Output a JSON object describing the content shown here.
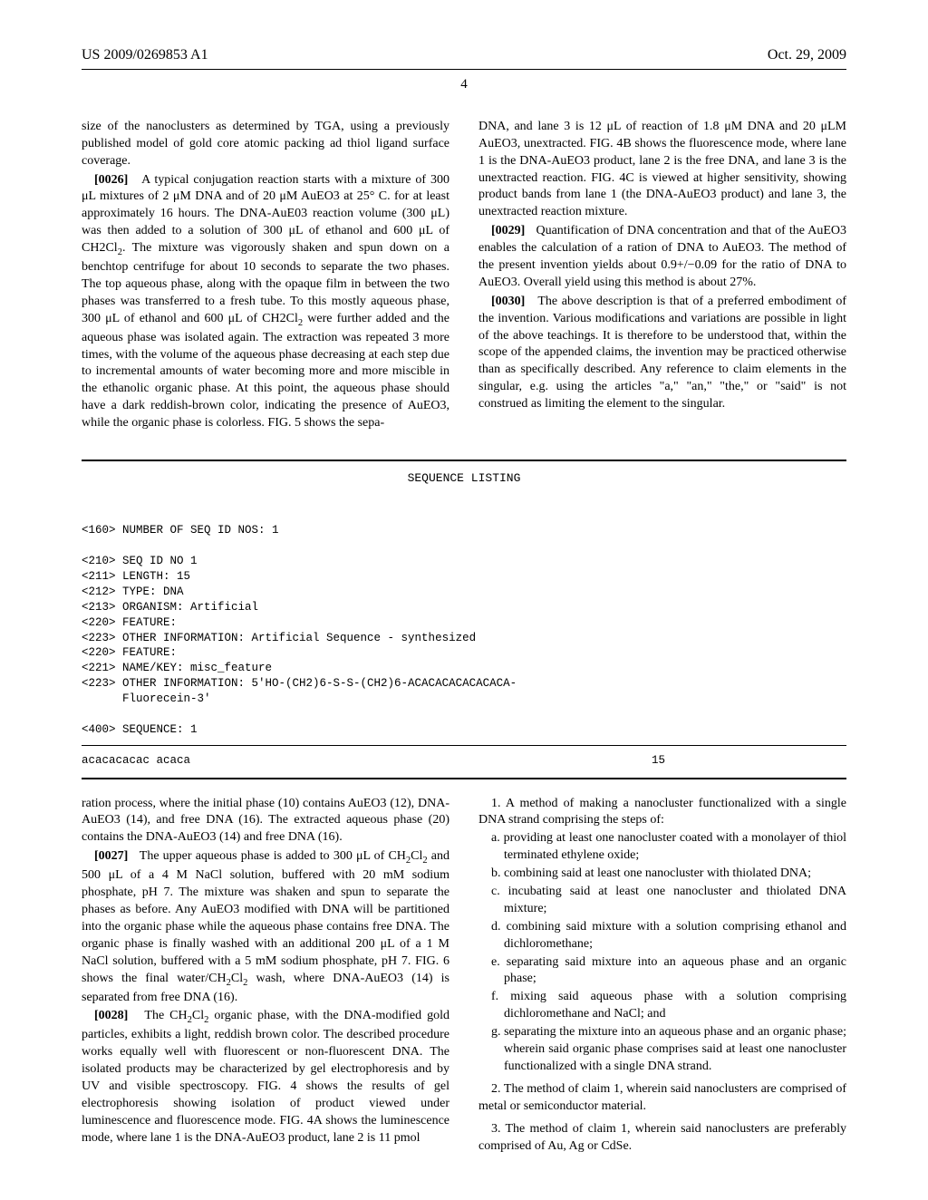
{
  "header": {
    "docket": "US 2009/0269853 A1",
    "date": "Oct. 29, 2009"
  },
  "page_number": "4",
  "left_col": {
    "p1": "size of the nanoclusters as determined by TGA, using a previously published model of gold core atomic packing ad thiol ligand surface coverage.",
    "p2_label": "[0026]",
    "p2_a": "A typical conjugation reaction starts with a mixture of 300 μL mixtures of 2 μM DNA and of 20 μM AuEO3 at 25° C. for at least approximately 16 hours. The DNA-AuE03 reaction volume (300 μL) was then added to a solution of 300 μL of ethanol and 600 μL of CH",
    "p2_b": ". The mixture was vigorously shaken and spun down on a benchtop centrifuge for about 10 seconds to separate the two phases. The top aqueous phase, along with the opaque film in between the two phases was transferred to a fresh tube. To this mostly aqueous phase, 300 μL of ethanol and 600 μL of CH",
    "p2_c": " were further added and the aqueous phase was isolated again. The extraction was repeated 3 more times, with the volume of the aqueous phase decreasing at each step due to incremental amounts of water becoming more and more miscible in the ethanolic organic phase. At this point, the aqueous phase should have a dark reddish-brown color, indicating the presence of AuEO3, while the organic phase is colorless. FIG. 5 shows the sepa-"
  },
  "right_col": {
    "p1": "DNA, and lane 3 is 12 μL of reaction of 1.8 μM DNA and 20 μLM AuEO3, unextracted. FIG. 4B shows the fluorescence mode, where lane 1 is the DNA-AuEO3 product, lane 2 is the free DNA, and lane 3 is the unextracted reaction. FIG. 4C is viewed at higher sensitivity, showing product bands from lane 1 (the DNA-AuEO3 product) and lane 3, the unextracted reaction mixture.",
    "p2_label": "[0029]",
    "p2": "Quantification of DNA concentration and that of the AuEO3 enables the calculation of a ration of DNA to AuEO3. The method of the present invention yields about 0.9+/−0.09 for the ratio of DNA to AuEO3. Overall yield using this method is about 27%.",
    "p3_label": "[0030]",
    "p3": "The above description is that of a preferred embodiment of the invention. Various modifications and variations are possible in light of the above teachings. It is therefore to be understood that, within the scope of the appended claims, the invention may be practiced otherwise than as specifically described. Any reference to claim elements in the singular, e.g. using the articles \"a,\" \"an,\" \"the,\" or \"said\" is not construed as limiting the element to the singular."
  },
  "sequence": {
    "title": "SEQUENCE LISTING",
    "lines": [
      "<160> NUMBER OF SEQ ID NOS: 1",
      "",
      "<210> SEQ ID NO 1",
      "<211> LENGTH: 15",
      "<212> TYPE: DNA",
      "<213> ORGANISM: Artificial",
      "<220> FEATURE:",
      "<223> OTHER INFORMATION: Artificial Sequence - synthesized",
      "<220> FEATURE:",
      "<221> NAME/KEY: misc_feature",
      "<223> OTHER INFORMATION: 5'HO-(CH2)6-S-S-(CH2)6-ACACACACACACACA-",
      "      Fluorecein-3'",
      "",
      "<400> SEQUENCE: 1"
    ],
    "seq_text": "acacacacac acaca",
    "seq_num": "15"
  },
  "lower_left": {
    "p1": "ration process, where the initial phase (10) contains AuEO3 (12), DNA-AuEO3 (14), and free DNA (16). The extracted aqueous phase (20) contains the DNA-AuEO3 (14) and free DNA (16).",
    "p2_label": "[0027]",
    "p2_a": "The upper aqueous phase is added to 300 μL of CH",
    "p2_b": " and 500 μL of a 4 M NaCl solution, buffered with 20 mM sodium phosphate, pH 7. The mixture was shaken and spun to separate the phases as before. Any AuEO3 modified with DNA will be partitioned into the organic phase while the aqueous phase contains free DNA. The organic phase is finally washed with an additional 200 μL of a 1 M NaCl solution, buffered with a 5 mM sodium phosphate, pH 7. FIG. 6 shows the final water/CH",
    "p2_c": " wash, where DNA-AuEO3 (14) is separated from free DNA (16).",
    "p3_label": "[0028]",
    "p3_a": "The CH",
    "p3_b": " organic phase, with the DNA-modified gold particles, exhibits a light, reddish brown color. The described procedure works equally well with fluorescent or non-fluorescent DNA. The isolated products may be characterized by gel electrophoresis and by UV and visible spectroscopy. FIG. 4 shows the results of gel electrophoresis showing isolation of product viewed under luminescence and fluorescence mode. FIG. 4A shows the luminescence mode, where lane 1 is the DNA-AuEO3 product, lane 2 is 11 pmol"
  },
  "claims": {
    "c1_intro": "1. A method of making a nanocluster functionalized with a single DNA strand comprising the steps of:",
    "c1_a": "a. providing at least one nanocluster coated with a monolayer of thiol terminated ethylene oxide;",
    "c1_b": "b. combining said at least one nanocluster with thiolated DNA;",
    "c1_c": "c. incubating said at least one nanocluster and thiolated DNA mixture;",
    "c1_d": "d. combining said mixture with a solution comprising ethanol and dichloromethane;",
    "c1_e": "e. separating said mixture into an aqueous phase and an organic phase;",
    "c1_f": "f. mixing said aqueous phase with a solution comprising dichloromethane and NaCl; and",
    "c1_g": "g. separating the mixture into an aqueous phase and an organic phase; wherein said organic phase comprises said at least one nanocluster functionalized with a single DNA strand.",
    "c2": "2. The method of claim 1, wherein said nanoclusters are comprised of metal or semiconductor material.",
    "c3": "3. The method of claim 1, wherein said nanoclusters are preferably comprised of Au, Ag or CdSe."
  },
  "chem": {
    "ch2cl2_a": "2",
    "ch2cl2_b": "Cl",
    "ch2cl2_c": "2"
  }
}
